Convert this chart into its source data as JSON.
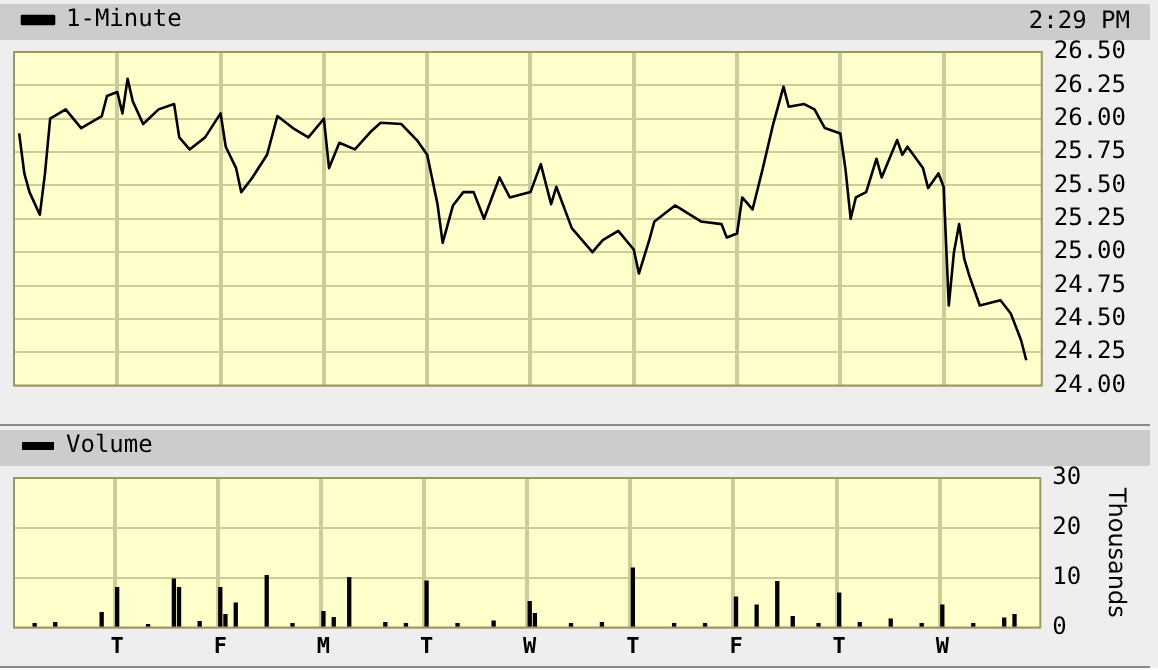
{
  "chart_data": [
    {
      "type": "line",
      "annotations": [
        "2:29 PM"
      ],
      "legend": "top left",
      "grid": true,
      "marker": "none",
      "categories": [
        null,
        null,
        null,
        null,
        null,
        null,
        null,
        null,
        null,
        null,
        null,
        null,
        null,
        null,
        null,
        null,
        null,
        null,
        null,
        null,
        null,
        null,
        null,
        null,
        null,
        null,
        null,
        null,
        null,
        null,
        null,
        null,
        null,
        null,
        null,
        null,
        null,
        null,
        null,
        null,
        null,
        null,
        null,
        null,
        null,
        null,
        null,
        null,
        null,
        null,
        null,
        null,
        null,
        null,
        null,
        null,
        null,
        null,
        null,
        null,
        null,
        null,
        null,
        null,
        null,
        null,
        null,
        null,
        null,
        null,
        null,
        null,
        null,
        null,
        null,
        null,
        null,
        null,
        null,
        null,
        null,
        null,
        null,
        null,
        null,
        null,
        null,
        null,
        null,
        null,
        null,
        null,
        null,
        null,
        null,
        null,
        null,
        null,
        null,
        null,
        null,
        null,
        null,
        null,
        null,
        null,
        null,
        null,
        null,
        null,
        null,
        null,
        null,
        null,
        null,
        null,
        null,
        null,
        null,
        null,
        null,
        null,
        null,
        null,
        null,
        null,
        null,
        null,
        null,
        null,
        null,
        null,
        null,
        null,
        null,
        null,
        null,
        null,
        null,
        null,
        null,
        null,
        null,
        null,
        null,
        null,
        null,
        null,
        null,
        null,
        null,
        null,
        null,
        null,
        null,
        null,
        null,
        null,
        null,
        null,
        null,
        null,
        null,
        null,
        null,
        null,
        null,
        null,
        null,
        null,
        null,
        null,
        null,
        null,
        null,
        null,
        null,
        null,
        null,
        null,
        null,
        null,
        null,
        null,
        null,
        null,
        null,
        null,
        null,
        null,
        null,
        null,
        null,
        null,
        null,
        null,
        null,
        null,
        null,
        null
      ],
      "ylim": [
        24,
        26.5
      ],
      "yticks": [
        {
          "value": 24,
          "label": "24.00"
        },
        {
          "value": 24.25,
          "label": "24.25"
        },
        {
          "value": 24.5,
          "label": "24.50"
        },
        {
          "value": 24.75,
          "label": "24.75"
        },
        {
          "value": 25,
          "label": "25.00"
        },
        {
          "value": 25.25,
          "label": "25.25"
        },
        {
          "value": 25.5,
          "label": "25.50"
        },
        {
          "value": 25.75,
          "label": "25.75"
        },
        {
          "value": 26,
          "label": "26.00"
        },
        {
          "value": 26.25,
          "label": "26.25"
        },
        {
          "value": 26.5,
          "label": "26.50"
        }
      ],
      "series": [
        {
          "name": "1-Minute",
          "color": "#000000",
          "values": [
            null,
            25.89,
            25.59,
            25.45,
            null,
            25.28,
            25.59,
            26.0,
            null,
            null,
            26.07,
            null,
            null,
            25.93,
            null,
            null,
            null,
            26.02,
            26.17,
            null,
            26.2,
            26.04,
            26.3,
            26.13,
            null,
            25.96,
            null,
            null,
            26.07,
            null,
            null,
            26.11,
            25.86,
            null,
            25.77,
            null,
            null,
            25.86,
            null,
            null,
            26.04,
            25.79,
            null,
            25.63,
            25.45,
            null,
            25.55,
            null,
            null,
            25.73,
            null,
            26.02,
            null,
            null,
            25.93,
            null,
            null,
            25.86,
            null,
            null,
            26.0,
            25.63,
            null,
            25.82,
            null,
            null,
            25.77,
            null,
            null,
            25.9,
            null,
            25.97,
            null,
            null,
            null,
            25.96,
            null,
            null,
            25.84,
            null,
            25.73,
            null,
            25.36,
            25.07,
            null,
            25.35,
            null,
            25.45,
            null,
            25.45,
            null,
            25.25,
            null,
            null,
            25.56,
            null,
            25.41,
            null,
            null,
            null,
            25.45,
            null,
            25.66,
            null,
            25.36,
            25.49,
            null,
            null,
            25.18,
            null,
            null,
            null,
            25.0,
            null,
            25.09,
            null,
            null,
            25.16,
            null,
            null,
            25.02,
            24.84,
            null,
            25.09,
            25.23,
            null,
            null,
            null,
            25.35,
            null,
            null,
            null,
            null,
            25.23,
            null,
            null,
            null,
            25.21,
            25.11,
            null,
            25.14,
            25.41,
            null,
            25.32,
            null,
            25.63,
            null,
            25.96,
            null,
            26.24,
            26.09,
            null,
            null,
            26.11,
            null,
            26.07,
            null,
            25.93,
            null,
            null,
            25.89,
            25.62,
            25.25,
            25.41,
            null,
            25.45,
            null,
            25.7,
            25.56,
            null,
            null,
            25.84,
            25.73,
            25.79,
            null,
            null,
            25.63,
            25.48,
            null,
            25.59,
            25.49,
            24.6,
            25.0,
            25.21,
            24.95,
            24.82,
            null,
            24.6,
            null,
            null,
            null,
            24.64,
            null,
            24.54,
            null,
            24.34,
            24.19,
            null,
            null,
            null
          ]
        }
      ]
    },
    {
      "type": "bar",
      "ylabel": "Thousands",
      "legend": "top left",
      "grid": true,
      "categories": [
        null,
        null,
        null,
        null,
        null,
        null,
        null,
        null,
        null,
        null,
        null,
        null,
        null,
        null,
        null,
        null,
        null,
        null,
        null,
        null,
        "T",
        null,
        null,
        null,
        null,
        null,
        null,
        null,
        null,
        null,
        null,
        null,
        null,
        null,
        null,
        null,
        null,
        null,
        null,
        null,
        "F",
        null,
        null,
        null,
        null,
        null,
        null,
        null,
        null,
        null,
        null,
        null,
        null,
        null,
        null,
        null,
        null,
        null,
        null,
        null,
        "M",
        null,
        null,
        null,
        null,
        null,
        null,
        null,
        null,
        null,
        null,
        null,
        null,
        null,
        null,
        null,
        null,
        null,
        null,
        null,
        "T",
        null,
        null,
        null,
        null,
        null,
        null,
        null,
        null,
        null,
        null,
        null,
        null,
        null,
        null,
        null,
        null,
        null,
        null,
        null,
        "W",
        null,
        null,
        null,
        null,
        null,
        null,
        null,
        null,
        null,
        null,
        null,
        null,
        null,
        null,
        null,
        null,
        null,
        null,
        null,
        "T",
        null,
        null,
        null,
        null,
        null,
        null,
        null,
        null,
        null,
        null,
        null,
        null,
        null,
        null,
        null,
        null,
        null,
        null,
        null,
        "F",
        null,
        null,
        null,
        null,
        null,
        null,
        null,
        null,
        null,
        null,
        null,
        null,
        null,
        null,
        null,
        null,
        null,
        null,
        null,
        "T",
        null,
        null,
        null,
        null,
        null,
        null,
        null,
        null,
        null,
        null,
        null,
        null,
        null,
        null,
        null,
        null,
        null,
        null,
        null,
        "W",
        null,
        null,
        null,
        null,
        null,
        null,
        null,
        null,
        null,
        null,
        null,
        null,
        null,
        null,
        null,
        null,
        null,
        null,
        null
      ],
      "ylim": [
        0,
        30
      ],
      "yticks": [
        0,
        10,
        20,
        30
      ],
      "series": [
        {
          "name": "Volume",
          "color": "#000000",
          "values": [
            null,
            null,
            null,
            null,
            0.8,
            null,
            null,
            null,
            1.0,
            null,
            null,
            null,
            null,
            null,
            null,
            null,
            null,
            3.0,
            null,
            null,
            8.0,
            null,
            null,
            null,
            null,
            null,
            0.6,
            null,
            null,
            null,
            null,
            9.7,
            8.0,
            null,
            null,
            null,
            1.2,
            null,
            null,
            null,
            8.0,
            2.6,
            null,
            4.9,
            null,
            null,
            null,
            null,
            null,
            10.4,
            null,
            null,
            null,
            null,
            0.8,
            null,
            null,
            null,
            null,
            null,
            3.2,
            null,
            2.0,
            null,
            null,
            10.0,
            null,
            null,
            null,
            null,
            null,
            null,
            1.0,
            null,
            null,
            null,
            0.8,
            null,
            null,
            null,
            9.3,
            null,
            null,
            null,
            null,
            null,
            0.8,
            null,
            null,
            null,
            null,
            null,
            null,
            1.3,
            null,
            null,
            null,
            null,
            null,
            null,
            5.2,
            2.8,
            null,
            null,
            null,
            null,
            null,
            null,
            0.8,
            null,
            null,
            null,
            null,
            null,
            1.0,
            null,
            null,
            null,
            null,
            null,
            11.9,
            null,
            null,
            null,
            null,
            null,
            null,
            null,
            0.8,
            null,
            null,
            null,
            null,
            null,
            0.8,
            null,
            null,
            null,
            null,
            null,
            6.1,
            null,
            null,
            null,
            4.5,
            null,
            null,
            null,
            9.2,
            null,
            null,
            2.2,
            null,
            null,
            null,
            null,
            0.8,
            null,
            null,
            null,
            6.9,
            null,
            null,
            null,
            1.0,
            null,
            null,
            null,
            null,
            null,
            1.7,
            null,
            null,
            null,
            null,
            null,
            0.8,
            null,
            null,
            null,
            4.5,
            null,
            null,
            null,
            null,
            null,
            0.8,
            null,
            null,
            null,
            null,
            null,
            1.9,
            null,
            2.6,
            null,
            null,
            null,
            null,
            null
          ]
        }
      ]
    }
  ]
}
